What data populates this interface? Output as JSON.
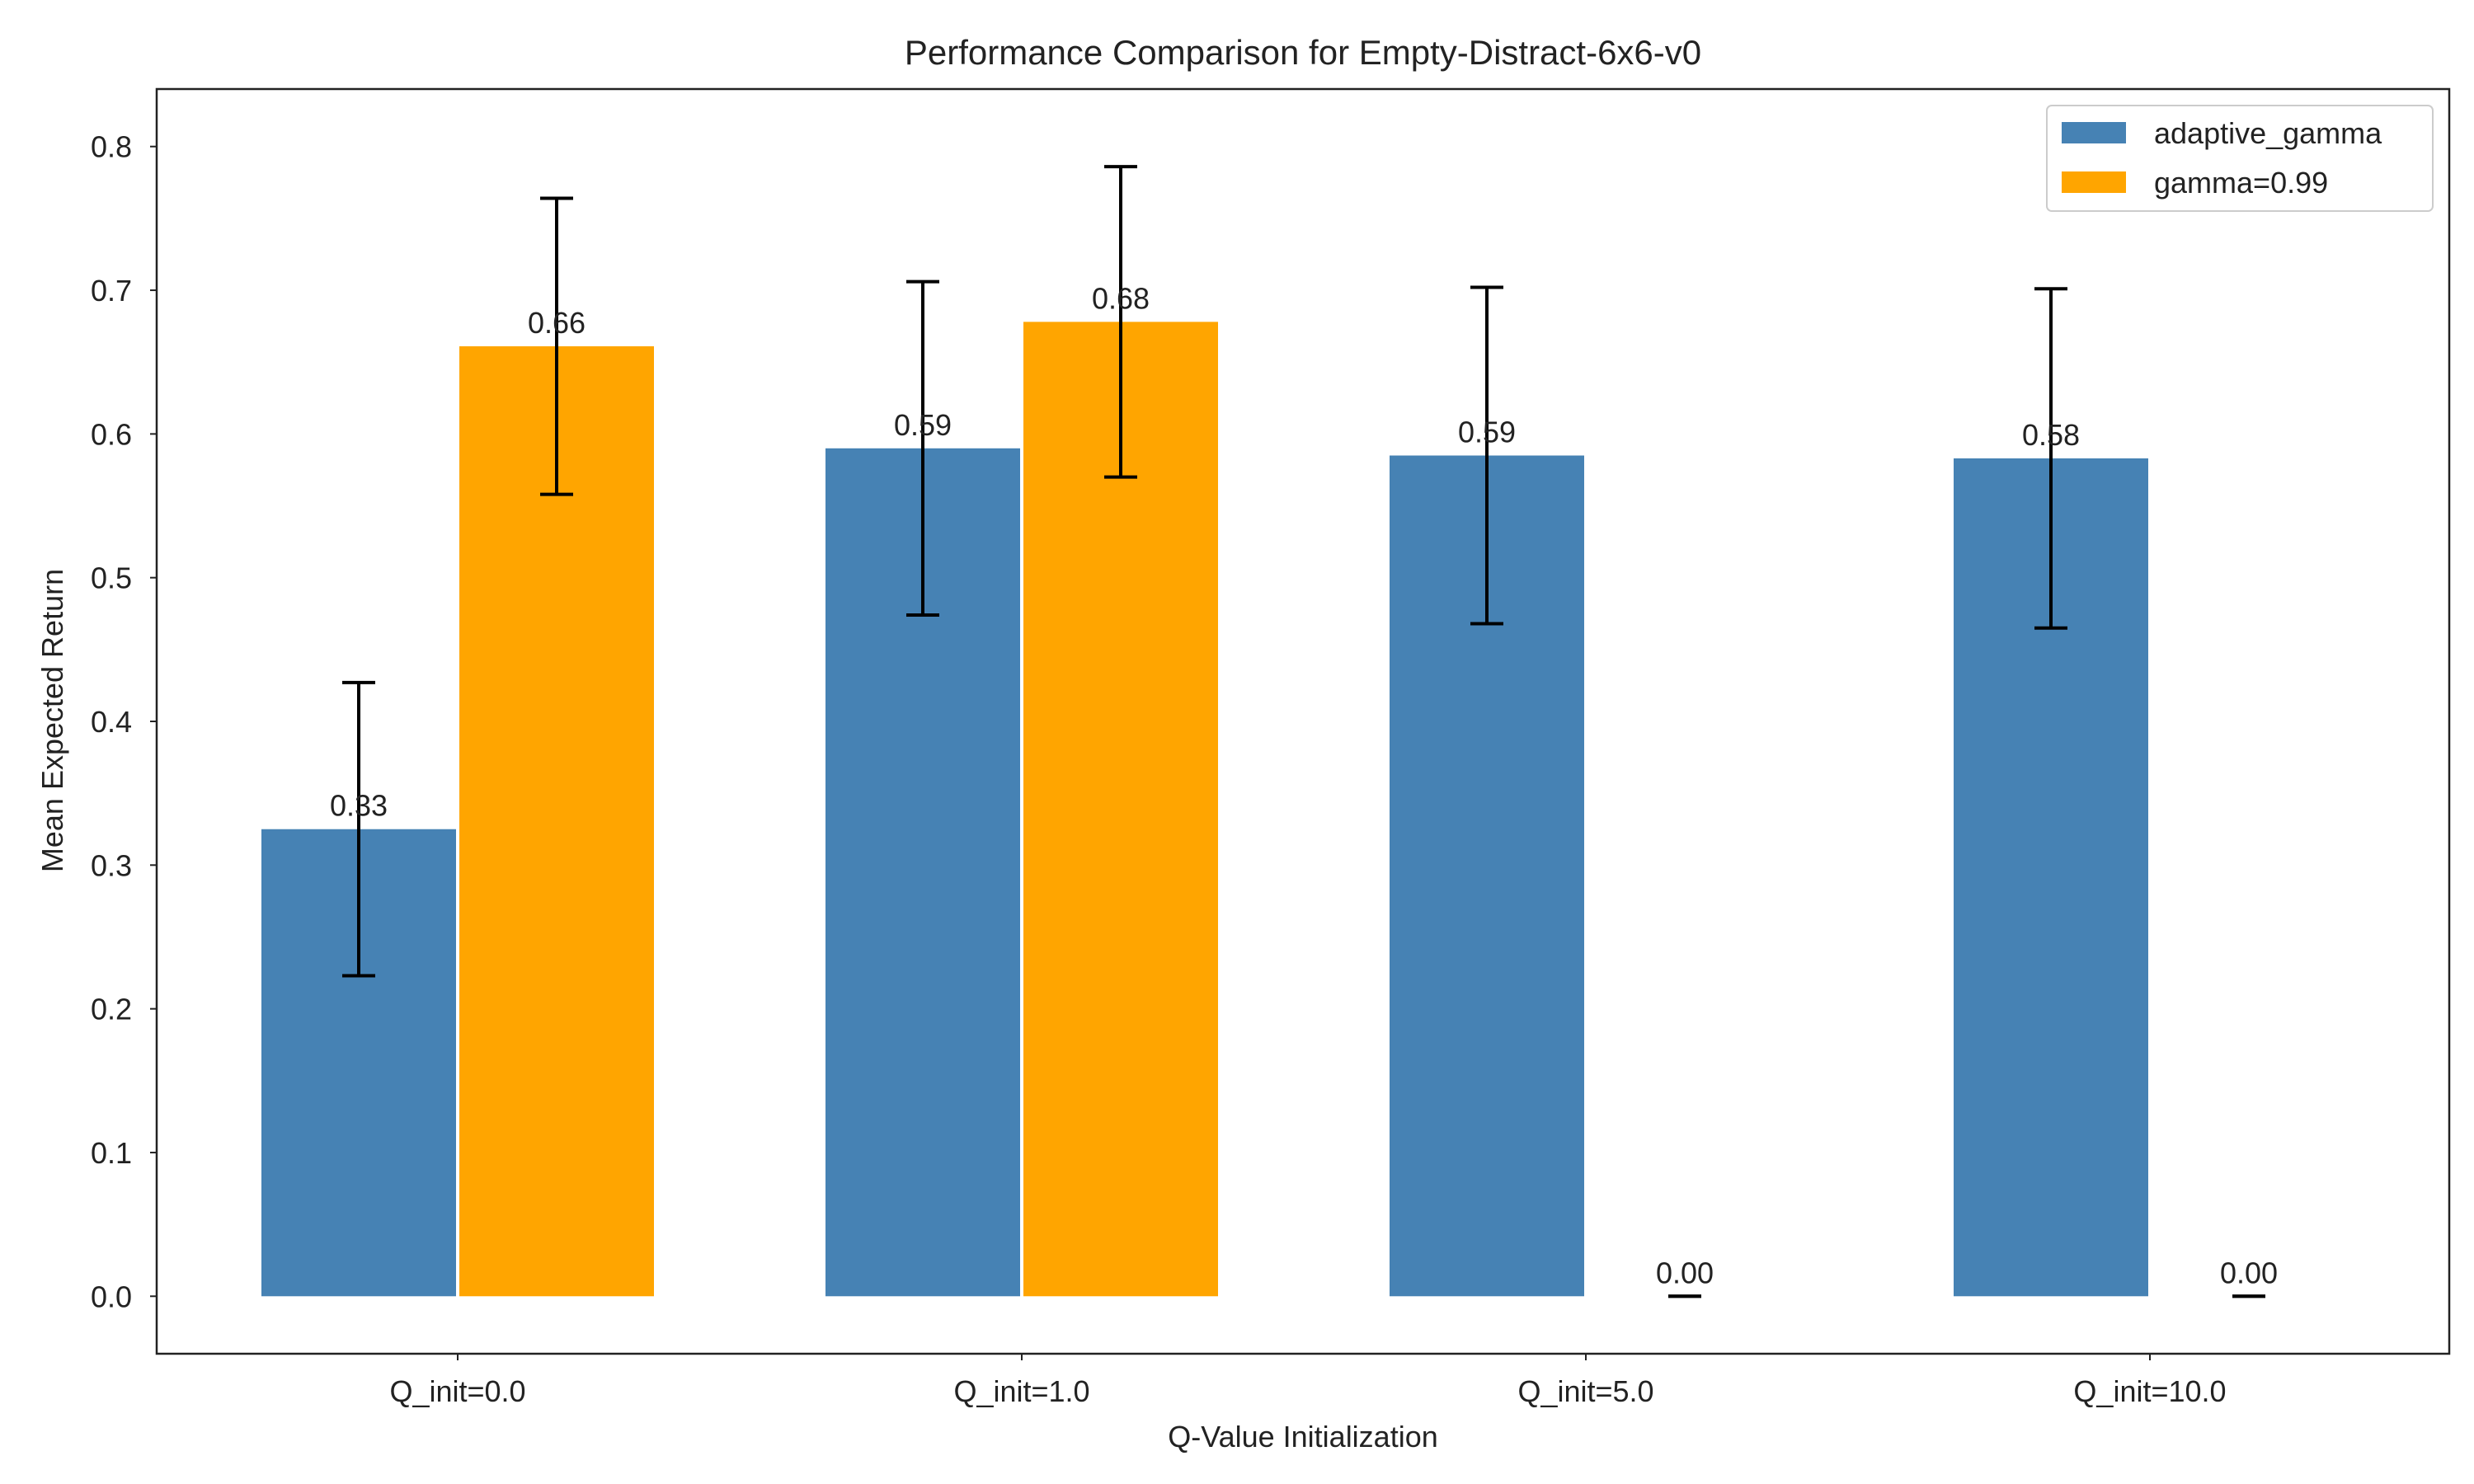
{
  "chart_data": {
    "type": "bar",
    "title": "Performance Comparison for Empty-Distract-6x6-v0",
    "xlabel": "Q-Value Initialization",
    "ylabel": "Mean Expected Return",
    "categories": [
      "Q_init=0.0",
      "Q_init=1.0",
      "Q_init=5.0",
      "Q_init=10.0"
    ],
    "ylim": [
      -0.04,
      0.84
    ],
    "yticks": [
      0.0,
      0.1,
      0.2,
      0.3,
      0.4,
      0.5,
      0.6,
      0.7,
      0.8
    ],
    "ytick_labels": [
      "0.0",
      "0.1",
      "0.2",
      "0.3",
      "0.4",
      "0.5",
      "0.6",
      "0.7",
      "0.8"
    ],
    "grid": false,
    "legend_position": "top-right",
    "series": [
      {
        "name": "adaptive_gamma",
        "color": "#4682B4",
        "values": [
          0.325,
          0.59,
          0.585,
          0.583
        ],
        "errors": [
          0.102,
          0.116,
          0.117,
          0.118
        ],
        "labels": [
          "0.33",
          "0.59",
          "0.59",
          "0.58"
        ]
      },
      {
        "name": "gamma=0.99",
        "color": "#FFA500",
        "values": [
          0.661,
          0.678,
          0.0,
          0.0
        ],
        "errors": [
          0.103,
          0.108,
          0.0,
          0.0
        ],
        "labels": [
          "0.66",
          "0.68",
          "0.00",
          "0.00"
        ]
      }
    ]
  }
}
